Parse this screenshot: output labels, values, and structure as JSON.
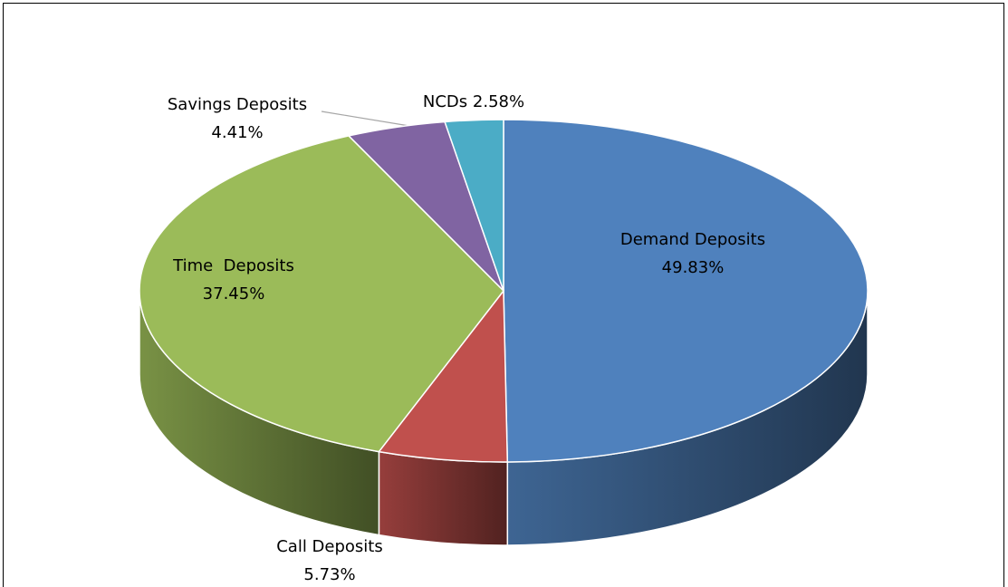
{
  "chart_data": {
    "type": "pie3d",
    "categories": [
      "Demand Deposits",
      "Call Deposits",
      "Time  Deposits",
      "Savings Deposits",
      "NCDs"
    ],
    "values": [
      49.83,
      5.73,
      37.45,
      4.41,
      2.58
    ],
    "value_labels": [
      "49.83%",
      "5.73%",
      "37.45%",
      "4.41%",
      "2.58%"
    ],
    "colors": [
      "#4f81bd",
      "#c0504d",
      "#9bbb59",
      "#8064a2",
      "#4bacc6"
    ]
  }
}
